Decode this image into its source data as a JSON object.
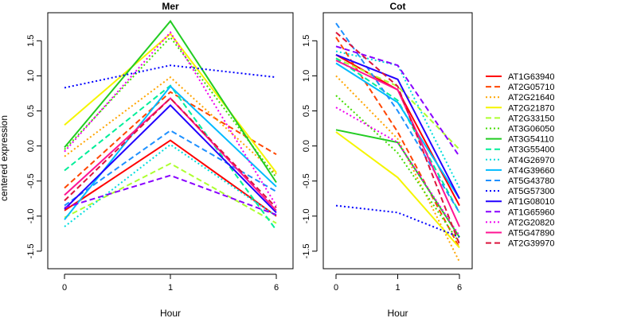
{
  "chart_data": [
    {
      "type": "line",
      "title": "Mer",
      "xlabel": "Hour",
      "ylabel": "centered expression",
      "categories": [
        "0",
        "1",
        "6"
      ],
      "ylim": [
        -1.75,
        1.9
      ],
      "yticks": [
        -1.5,
        -1.0,
        -0.5,
        0.0,
        0.5,
        1.0,
        1.5
      ],
      "ytick_labels": [
        "-1.5",
        "-1.0",
        "-0.5",
        "0.0",
        "0.5",
        "1.0",
        "1.5"
      ],
      "grid": false,
      "series": [
        {
          "name": "AT1G63940",
          "values": [
            -0.92,
            0.08,
            -1.0
          ],
          "color": "#ff0000",
          "dash": "solid"
        },
        {
          "name": "AT2G05710",
          "values": [
            -0.6,
            0.77,
            -0.12
          ],
          "color": "#ff4500",
          "dash": "dashed"
        },
        {
          "name": "AT2G21640",
          "values": [
            -0.15,
            0.98,
            -0.4
          ],
          "color": "#ffa500",
          "dash": "dotted"
        },
        {
          "name": "AT2G21870",
          "values": [
            0.3,
            1.6,
            -0.38
          ],
          "color": "#f5f500",
          "dash": "solid"
        },
        {
          "name": "AT2G33150",
          "values": [
            -1.02,
            -0.25,
            -1.1
          ],
          "color": "#adff2f",
          "dash": "dashed"
        },
        {
          "name": "AT3G06050",
          "values": [
            -0.05,
            1.55,
            -0.45
          ],
          "color": "#44dd00",
          "dash": "dotted"
        },
        {
          "name": "AT3G54110",
          "values": [
            -0.02,
            1.78,
            -0.52
          ],
          "color": "#22cc22",
          "dash": "solid"
        },
        {
          "name": "AT3G55400",
          "values": [
            -0.35,
            0.86,
            -1.2
          ],
          "color": "#00ee99",
          "dash": "dashed"
        },
        {
          "name": "AT4G26970",
          "values": [
            -1.15,
            0.02,
            -1.0
          ],
          "color": "#00dddd",
          "dash": "dotted"
        },
        {
          "name": "AT4G39660",
          "values": [
            -1.05,
            0.85,
            -0.58
          ],
          "color": "#00bbff",
          "dash": "solid"
        },
        {
          "name": "AT5G43780",
          "values": [
            -0.85,
            0.22,
            -0.65
          ],
          "color": "#1e90ff",
          "dash": "dashed"
        },
        {
          "name": "AT5G57300",
          "values": [
            0.83,
            1.15,
            0.98
          ],
          "color": "#0000ff",
          "dash": "dotted"
        },
        {
          "name": "AT1G08010",
          "values": [
            -0.9,
            0.58,
            -0.95
          ],
          "color": "#2200ff",
          "dash": "solid"
        },
        {
          "name": "AT1G65960",
          "values": [
            -0.88,
            -0.42,
            -0.98
          ],
          "color": "#8800ff",
          "dash": "dashed"
        },
        {
          "name": "AT2G20820",
          "values": [
            -0.08,
            1.62,
            -0.85
          ],
          "color": "#ee00ee",
          "dash": "dotted"
        },
        {
          "name": "AT5G47890",
          "values": [
            -0.7,
            0.68,
            -0.92
          ],
          "color": "#ff1493",
          "dash": "solid"
        },
        {
          "name": "AT2G39970",
          "values": [
            -0.78,
            0.68,
            -0.88
          ],
          "color": "#dc143c",
          "dash": "dashed"
        }
      ]
    },
    {
      "type": "line",
      "title": "Cot",
      "xlabel": "Hour",
      "ylabel": "",
      "categories": [
        "0",
        "1",
        "6"
      ],
      "ylim": [
        -1.75,
        1.9
      ],
      "yticks": [
        -1.5,
        -1.0,
        -0.5,
        0.0,
        0.5,
        1.0,
        1.5
      ],
      "ytick_labels": [
        "-1.5",
        "-1.0",
        "-0.5",
        "0.0",
        "0.5",
        "1.0",
        "1.5"
      ],
      "grid": false,
      "series": [
        {
          "name": "AT1G63940",
          "values": [
            1.3,
            0.8,
            -0.85
          ],
          "color": "#ff0000",
          "dash": "solid"
        },
        {
          "name": "AT2G05710",
          "values": [
            1.55,
            0.2,
            -1.45
          ],
          "color": "#ff4500",
          "dash": "dashed"
        },
        {
          "name": "AT2G21640",
          "values": [
            1.0,
            0.1,
            -1.65
          ],
          "color": "#ffa500",
          "dash": "dotted"
        },
        {
          "name": "AT2G21870",
          "values": [
            0.2,
            -0.45,
            -1.45
          ],
          "color": "#f5f500",
          "dash": "solid"
        },
        {
          "name": "AT2G33150",
          "values": [
            1.25,
            0.85,
            -0.05
          ],
          "color": "#adff2f",
          "dash": "dashed"
        },
        {
          "name": "AT3G06050",
          "values": [
            0.72,
            -0.1,
            -1.38
          ],
          "color": "#44dd00",
          "dash": "dotted"
        },
        {
          "name": "AT3G54110",
          "values": [
            0.23,
            0.05,
            -1.3
          ],
          "color": "#22cc22",
          "dash": "solid"
        },
        {
          "name": "AT3G55400",
          "values": [
            1.25,
            0.65,
            -0.95
          ],
          "color": "#00ee99",
          "dash": "dashed"
        },
        {
          "name": "AT4G26970",
          "values": [
            1.35,
            1.15,
            -0.6
          ],
          "color": "#00dddd",
          "dash": "dotted"
        },
        {
          "name": "AT4G39660",
          "values": [
            1.18,
            0.62,
            -0.75
          ],
          "color": "#00bbff",
          "dash": "solid"
        },
        {
          "name": "AT5G43780",
          "values": [
            1.75,
            0.5,
            -0.95
          ],
          "color": "#1e90ff",
          "dash": "dashed"
        },
        {
          "name": "AT5G57300",
          "values": [
            -0.85,
            -0.95,
            -1.3
          ],
          "color": "#0000ff",
          "dash": "dotted"
        },
        {
          "name": "AT1G08010",
          "values": [
            1.3,
            0.95,
            -0.75
          ],
          "color": "#2200ff",
          "dash": "solid"
        },
        {
          "name": "AT1G65960",
          "values": [
            1.42,
            1.15,
            -0.15
          ],
          "color": "#8800ff",
          "dash": "dashed"
        },
        {
          "name": "AT2G20820",
          "values": [
            0.55,
            0.05,
            -1.28
          ],
          "color": "#ee00ee",
          "dash": "dotted"
        },
        {
          "name": "AT5G47890",
          "values": [
            1.22,
            0.8,
            -1.15
          ],
          "color": "#ff1493",
          "dash": "solid"
        },
        {
          "name": "AT2G39970",
          "values": [
            1.62,
            0.85,
            -1.4
          ],
          "color": "#dc143c",
          "dash": "dashed"
        }
      ]
    }
  ],
  "legend": {
    "position": "right",
    "entries": [
      "AT1G63940",
      "AT2G05710",
      "AT2G21640",
      "AT2G21870",
      "AT2G33150",
      "AT3G06050",
      "AT3G54110",
      "AT3G55400",
      "AT4G26970",
      "AT4G39660",
      "AT5G43780",
      "AT5G57300",
      "AT1G08010",
      "AT1G65960",
      "AT2G20820",
      "AT5G47890",
      "AT2G39970"
    ]
  }
}
